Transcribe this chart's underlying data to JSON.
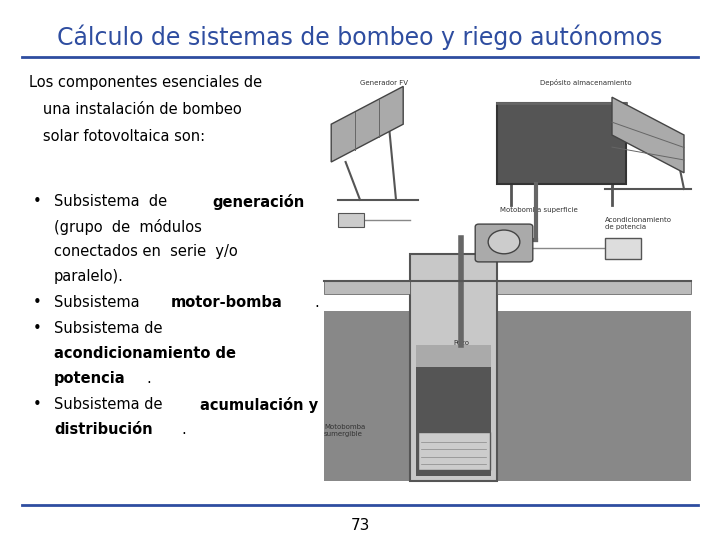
{
  "title": "Cálculo de sistemas de bombeo y riego autónomos",
  "title_color": "#2E4DA0",
  "title_fontsize": 17,
  "background_color": "#FFFFFF",
  "intro_lines": [
    "Los componentes esenciales de",
    "   una instalación de bombeo",
    "   solar fotovoltaica son:"
  ],
  "page_number": "73",
  "line_color": "#2E4DA0",
  "text_color": "#000000",
  "font_size_body": 10.5,
  "font_size_page": 11,
  "label_fs": 5.0
}
